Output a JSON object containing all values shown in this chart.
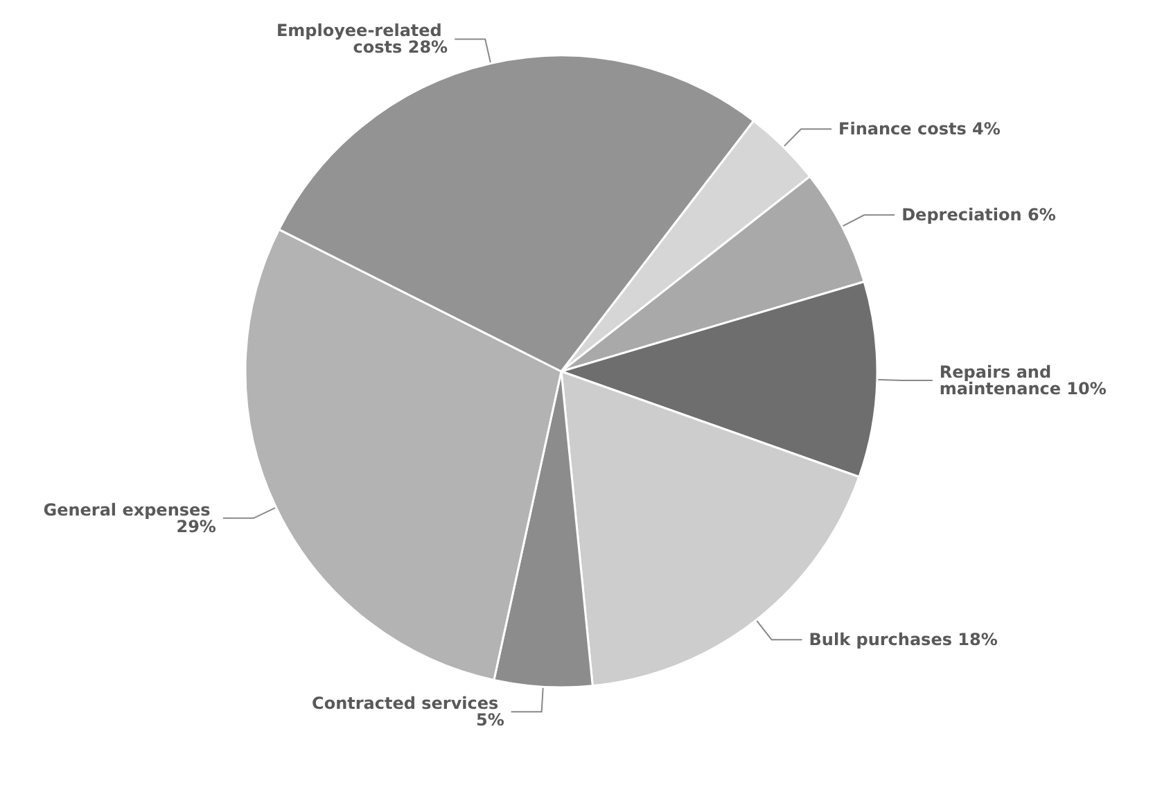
{
  "chart_data": {
    "type": "pie",
    "categories": [
      "Finance costs",
      "Depreciation",
      "Repairs and maintenance",
      "Bulk purchases",
      "Contracted services",
      "General expenses",
      "Employee-related costs"
    ],
    "values": [
      4,
      6,
      10,
      18,
      5,
      29,
      28
    ],
    "value_labels": [
      "4%",
      "6%",
      "10%",
      "18%",
      "5%",
      "29%",
      "28%"
    ],
    "colors": [
      "#d6d6d6",
      "#a9a9a9",
      "#6e6e6e",
      "#cdcdcd",
      "#8c8c8c",
      "#b3b3b3",
      "#939393"
    ]
  }
}
